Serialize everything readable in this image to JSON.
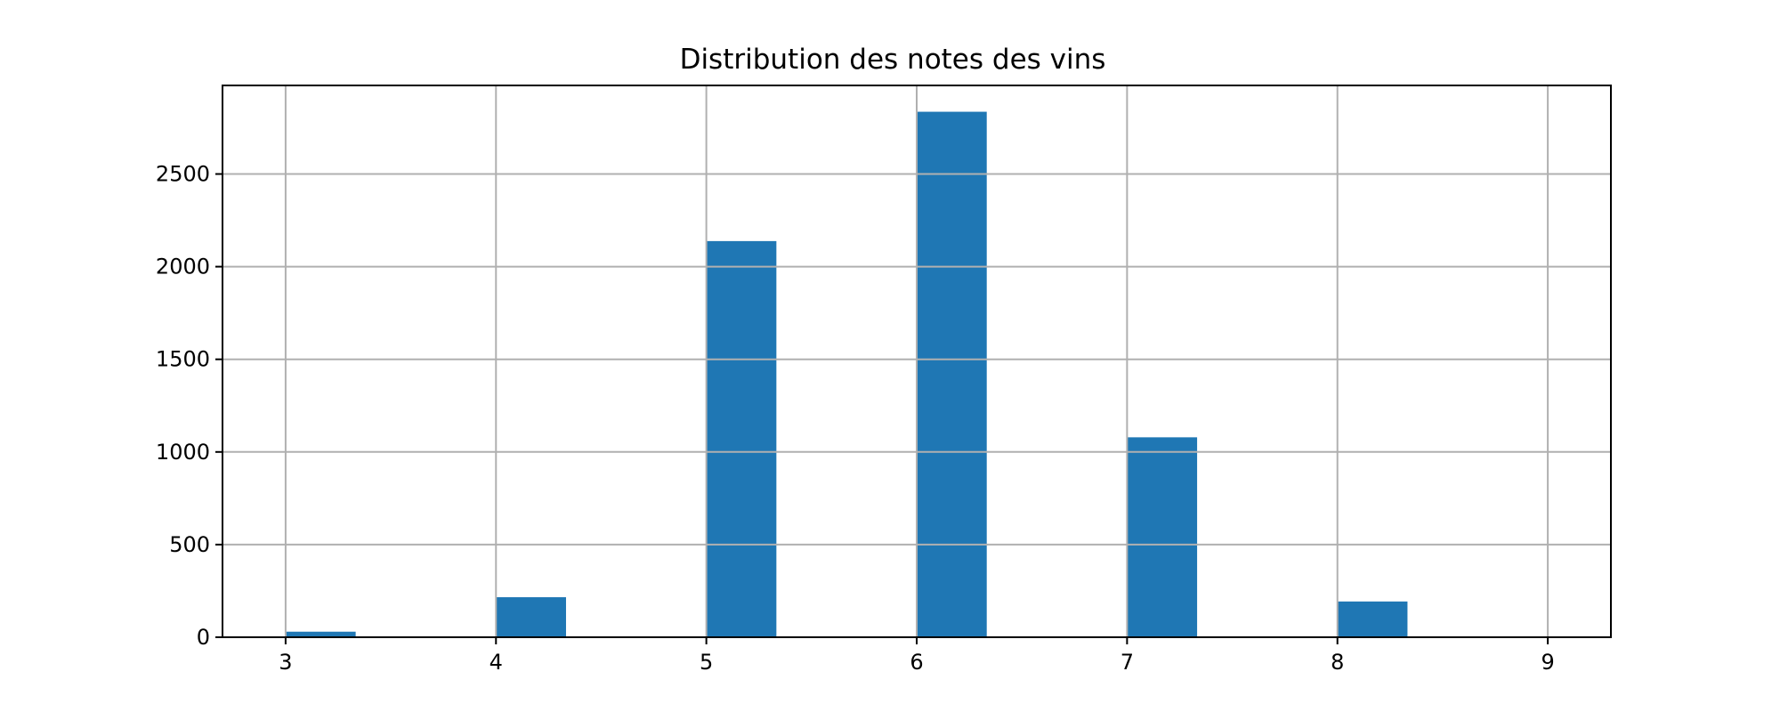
{
  "chart_data": {
    "type": "bar",
    "title": "Distribution des notes des vins",
    "xlabel": "",
    "ylabel": "",
    "bin_width": 0.333,
    "bins": [
      {
        "start": 3,
        "count": 30
      },
      {
        "start": 4,
        "count": 216
      },
      {
        "start": 5,
        "count": 2138
      },
      {
        "start": 6,
        "count": 2836
      },
      {
        "start": 7,
        "count": 1079
      },
      {
        "start": 8,
        "count": 193
      }
    ],
    "xlim": [
      2.7,
      9.3
    ],
    "ylim": [
      0,
      2978
    ],
    "x_ticks": [
      "3",
      "4",
      "5",
      "6",
      "7",
      "8",
      "9"
    ],
    "y_ticks": [
      "0",
      "500",
      "1000",
      "1500",
      "2000",
      "2500"
    ],
    "grid": true,
    "bar_color": "#1f77b4",
    "grid_color": "#b0b0b0"
  }
}
